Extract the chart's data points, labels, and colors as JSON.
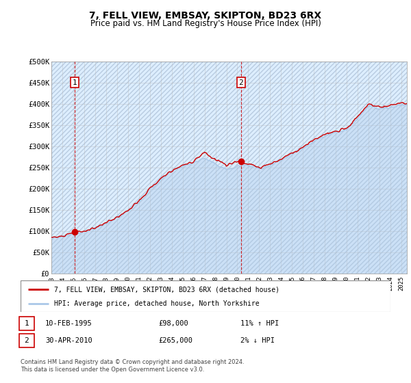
{
  "title": "7, FELL VIEW, EMBSAY, SKIPTON, BD23 6RX",
  "subtitle": "Price paid vs. HM Land Registry's House Price Index (HPI)",
  "ylim": [
    0,
    500000
  ],
  "yticks": [
    0,
    50000,
    100000,
    150000,
    200000,
    250000,
    300000,
    350000,
    400000,
    450000,
    500000
  ],
  "ytick_labels": [
    "£0",
    "£50K",
    "£100K",
    "£150K",
    "£200K",
    "£250K",
    "£300K",
    "£350K",
    "£400K",
    "£450K",
    "£500K"
  ],
  "xlim_start": 1993.0,
  "xlim_end": 2025.5,
  "xticks": [
    1993,
    1994,
    1995,
    1996,
    1997,
    1998,
    1999,
    2000,
    2001,
    2002,
    2003,
    2004,
    2005,
    2006,
    2007,
    2008,
    2009,
    2010,
    2011,
    2012,
    2013,
    2014,
    2015,
    2016,
    2017,
    2018,
    2019,
    2020,
    2021,
    2022,
    2023,
    2024,
    2025
  ],
  "hpi_line_color": "#aac8e8",
  "price_line_color": "#cc0000",
  "marker_color": "#cc0000",
  "bg_color": "#ddeeff",
  "hatch_color": "#b8cce0",
  "grid_color": "#bbbbbb",
  "sale1_x": 1995.11,
  "sale1_y": 98000,
  "sale1_label": "1",
  "sale1_date": "10-FEB-1995",
  "sale1_price": "£98,000",
  "sale1_hpi": "11% ↑ HPI",
  "sale2_x": 2010.33,
  "sale2_y": 265000,
  "sale2_label": "2",
  "sale2_date": "30-APR-2010",
  "sale2_price": "£265,000",
  "sale2_hpi": "2% ↓ HPI",
  "legend_line1": "7, FELL VIEW, EMBSAY, SKIPTON, BD23 6RX (detached house)",
  "legend_line2": "HPI: Average price, detached house, North Yorkshire",
  "footer": "Contains HM Land Registry data © Crown copyright and database right 2024.\nThis data is licensed under the Open Government Licence v3.0."
}
